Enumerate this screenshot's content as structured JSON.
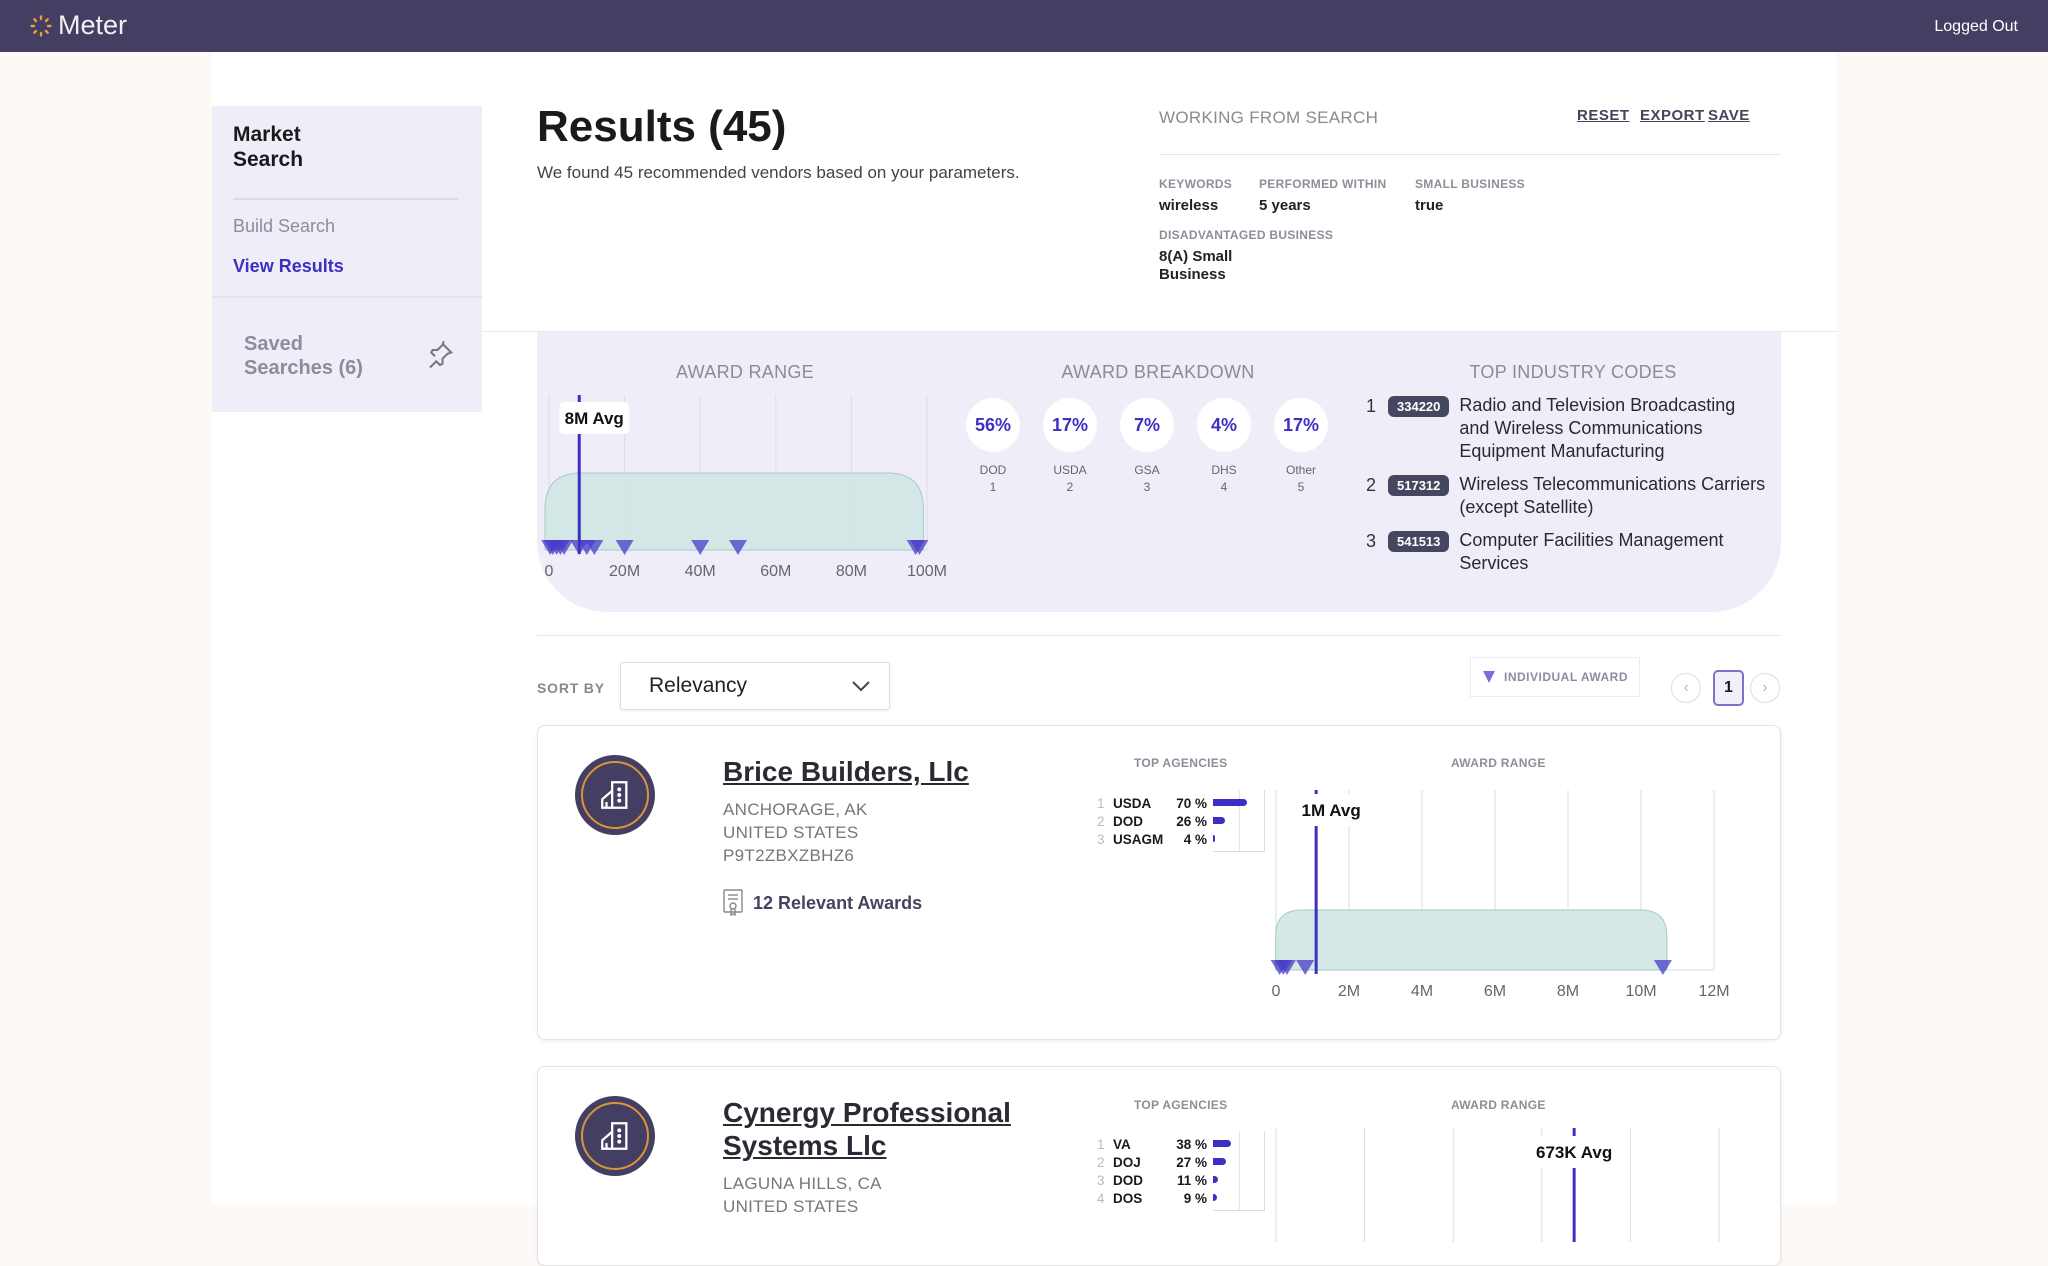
{
  "app": {
    "name": "Meter",
    "status": "Logged Out"
  },
  "sidebar": {
    "title": "Market Search",
    "items": [
      {
        "label": "Build Search"
      },
      {
        "label": "View Results"
      }
    ],
    "saved": "Saved Searches (6)"
  },
  "results": {
    "title": "Results (45)",
    "subtitle": "We found 45 recommended vendors based on your parameters."
  },
  "search": {
    "heading": "WORKING FROM SEARCH",
    "actions": [
      "RESET",
      "EXPORT",
      "SAVE"
    ],
    "params": [
      {
        "label": "KEYWORDS",
        "value": "wireless"
      },
      {
        "label": "PERFORMED WITHIN",
        "value": "5 years"
      },
      {
        "label": "SMALL BUSINESS",
        "value": "true"
      },
      {
        "label": "DISADVANTAGED BUSINESS",
        "value": "8(A) Small Business"
      }
    ]
  },
  "stats": {
    "award_range": {
      "title": "AWARD RANGE",
      "avg_label": "8M Avg",
      "avg": 8,
      "min": 0,
      "max": 98,
      "axis_max": 100,
      "ticks": [
        "0",
        "20M",
        "40M",
        "60M",
        "80M",
        "100M"
      ],
      "tick_values": [
        0,
        20,
        40,
        60,
        80,
        100
      ],
      "awards": [
        0.3,
        1,
        2,
        3,
        4,
        8,
        10,
        12,
        20,
        40,
        50,
        97,
        98
      ]
    },
    "breakdown": {
      "title": "AWARD BREAKDOWN",
      "items": [
        {
          "pct": "56%",
          "agency": "DOD",
          "rank": "1"
        },
        {
          "pct": "17%",
          "agency": "USDA",
          "rank": "2"
        },
        {
          "pct": "7%",
          "agency": "GSA",
          "rank": "3"
        },
        {
          "pct": "4%",
          "agency": "DHS",
          "rank": "4"
        },
        {
          "pct": "17%",
          "agency": "Other",
          "rank": "5"
        }
      ]
    },
    "industry": {
      "title": "TOP INDUSTRY CODES",
      "items": [
        {
          "rank": "1",
          "code": "334220",
          "desc": "Radio and Television Broadcasting and Wireless Communications Equipment Manufacturing"
        },
        {
          "rank": "2",
          "code": "517312",
          "desc": "Wireless Telecommunications Carriers (except Satellite)"
        },
        {
          "rank": "3",
          "code": "541513",
          "desc": "Computer Facilities Management Services"
        }
      ]
    }
  },
  "sort": {
    "label": "SORT BY",
    "value": "Relevancy"
  },
  "legend": {
    "label": "INDIVIDUAL AWARD"
  },
  "pagination": {
    "page": "1"
  },
  "vendors": [
    {
      "name": "Brice Builders, Llc",
      "city": "ANCHORAGE, AK",
      "country": "UNITED STATES",
      "id": "P9T2ZBXZBHZ6",
      "awards": "12 Relevant Awards",
      "agencies_title": "TOP AGENCIES",
      "range_title": "AWARD RANGE",
      "agencies": [
        {
          "rank": "1",
          "name": "USDA",
          "pct": 70,
          "pct_label": "70 %"
        },
        {
          "rank": "2",
          "name": "DOD",
          "pct": 26,
          "pct_label": "26 %"
        },
        {
          "rank": "3",
          "name": "USAGM",
          "pct": 4,
          "pct_label": "4 %"
        }
      ],
      "range": {
        "avg_label": "1M Avg",
        "avg": 1.1,
        "min": 0.1,
        "max": 10.6,
        "axis_max": 12,
        "ticks": [
          "0",
          "2M",
          "4M",
          "6M",
          "8M",
          "10M",
          "12M"
        ],
        "tick_values": [
          0,
          2,
          4,
          6,
          8,
          10,
          12
        ],
        "awards": [
          0.1,
          0.2,
          0.3,
          0.8,
          10.6
        ]
      }
    },
    {
      "name": "Cynergy Professional Systems Llc",
      "city": "LAGUNA HILLS, CA",
      "country": "UNITED STATES",
      "agencies_title": "TOP AGENCIES",
      "range_title": "AWARD RANGE",
      "agencies": [
        {
          "rank": "1",
          "name": "VA",
          "pct": 38,
          "pct_label": "38 %"
        },
        {
          "rank": "2",
          "name": "DOJ",
          "pct": 27,
          "pct_label": "27 %"
        },
        {
          "rank": "3",
          "name": "DOD",
          "pct": 11,
          "pct_label": "11 %"
        },
        {
          "rank": "4",
          "name": "DOS",
          "pct": 9,
          "pct_label": "9 %"
        }
      ],
      "range": {
        "avg_label": "673K Avg",
        "avg": 0.673,
        "axis_max": 1,
        "tick_values": [
          0,
          0.2,
          0.4,
          0.6,
          0.8,
          1
        ]
      }
    }
  ],
  "colors": {
    "header": "#443e63",
    "accent": "#3d2fc4",
    "range_fill": "#cfe5e4",
    "marker": "#4a3bc8"
  }
}
